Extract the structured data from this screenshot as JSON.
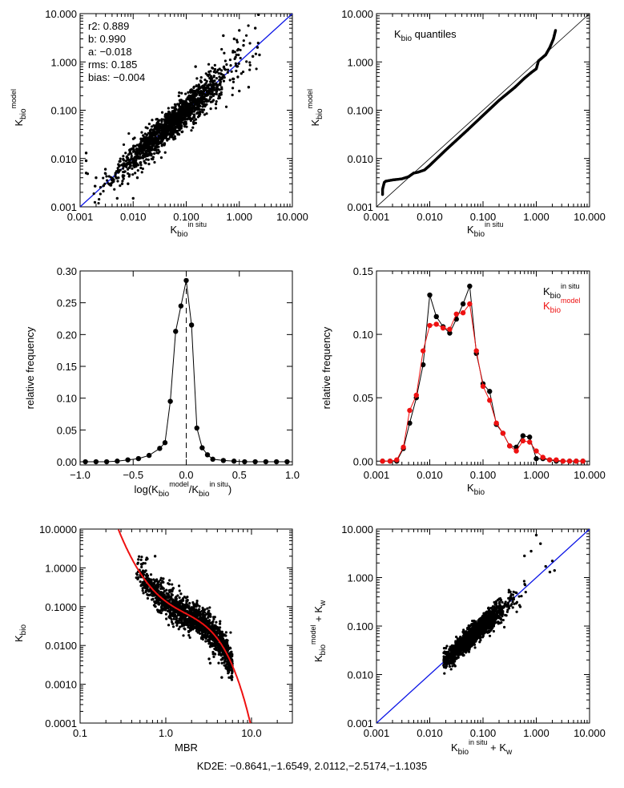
{
  "footer": "KD2E: −0.8641,−1.6549, 2.0112,−2.5174,−1.1035",
  "colors": {
    "black": "#000000",
    "blue": "#0a14e6",
    "red": "#ee1111"
  },
  "chart_data": [
    {
      "id": "p1",
      "type": "scatter",
      "xscale": "log",
      "yscale": "log",
      "xlim": [
        0.001,
        10
      ],
      "ylim": [
        0.001,
        10
      ],
      "xticks": [
        "0.001",
        "0.010",
        "0.100",
        "1.000",
        "10.000"
      ],
      "yticks": [
        "0.001",
        "0.010",
        "0.100",
        "1.000",
        "10.000"
      ],
      "xlabel": {
        "base": "K",
        "sub": "bio",
        "sup": "in situ"
      },
      "ylabel": {
        "base": "K",
        "sub": "bio",
        "sup": "model"
      },
      "stats": [
        "r2: 0.889",
        "b: 0.990",
        "a: −0.018",
        "rms: 0.185",
        "bias: −0.004"
      ],
      "fit_line": {
        "color": "blue",
        "points": [
          [
            0.001,
            0.001
          ],
          [
            10,
            10
          ]
        ]
      },
      "scatter": {
        "n": 1600,
        "center": -1.25,
        "spread": 0.52,
        "noise": 0.16,
        "seed": 11,
        "outliers": [
          [
            0.0013,
            0.013
          ],
          [
            0.0013,
            0.009
          ],
          [
            0.0013,
            0.005
          ],
          [
            0.002,
            0.004
          ],
          [
            0.003,
            0.006
          ],
          [
            0.005,
            0.0015
          ],
          [
            0.0062,
            0.003
          ],
          [
            0.008,
            0.003
          ],
          [
            0.01,
            0.0015
          ],
          [
            0.012,
            0.004
          ],
          [
            0.35,
            0.7
          ],
          [
            0.5,
            3.5
          ],
          [
            0.8,
            3.0
          ],
          [
            1.0,
            0.25
          ],
          [
            1.2,
            2.2
          ],
          [
            1.5,
            0.3
          ],
          [
            1.8,
            1.3
          ],
          [
            2.0,
            5.0
          ],
          [
            2.2,
            2.0
          ],
          [
            2.3,
            9.5
          ],
          [
            2.4,
            1.4
          ],
          [
            1.0,
            4.5
          ],
          [
            0.15,
            0.8
          ]
        ]
      }
    },
    {
      "id": "p2",
      "type": "scatter",
      "xscale": "log",
      "yscale": "log",
      "xlim": [
        0.001,
        10
      ],
      "ylim": [
        0.001,
        10
      ],
      "xticks": [
        "0.001",
        "0.010",
        "0.100",
        "1.000",
        "10.000"
      ],
      "yticks": [
        "0.001",
        "0.010",
        "0.100",
        "1.000",
        "10.000"
      ],
      "xlabel": {
        "base": "K",
        "sub": "bio",
        "sup": "in situ"
      },
      "ylabel": {
        "base": "K",
        "sub": "bio",
        "sup": "model"
      },
      "annotation": {
        "base": "K",
        "sub": "bio",
        "rest": " quantiles"
      },
      "ref_line": {
        "color": "black",
        "points": [
          [
            0.001,
            0.001
          ],
          [
            10,
            10
          ]
        ]
      },
      "quantiles": {
        "x": [
          0.0013,
          0.0013,
          0.0014,
          0.0015,
          0.002,
          0.003,
          0.004,
          0.005,
          0.006,
          0.008,
          0.01,
          0.02,
          0.05,
          0.1,
          0.2,
          0.4,
          0.6,
          0.8,
          1.0,
          1.1,
          1.5,
          1.8,
          2.1,
          2.2,
          2.3
        ],
        "y": [
          0.0018,
          0.0023,
          0.0032,
          0.0034,
          0.0036,
          0.0038,
          0.0042,
          0.005,
          0.0052,
          0.0058,
          0.0072,
          0.015,
          0.038,
          0.078,
          0.16,
          0.3,
          0.46,
          0.6,
          0.72,
          1.05,
          1.4,
          2.0,
          3.0,
          3.7,
          4.5
        ]
      }
    },
    {
      "id": "p3",
      "type": "line",
      "xscale": "linear",
      "yscale": "linear",
      "xlim": [
        -1.0,
        1.0
      ],
      "ylim": [
        -0.005,
        0.3
      ],
      "xticks": [
        "−1.0",
        "−0.5",
        "0.0",
        "0.5",
        "1.0"
      ],
      "xtick_values": [
        -1.0,
        -0.5,
        0.0,
        0.5,
        1.0
      ],
      "yticks": [
        "0.00",
        "0.05",
        "0.10",
        "0.15",
        "0.20",
        "0.25",
        "0.30"
      ],
      "ytick_values": [
        0,
        0.05,
        0.1,
        0.15,
        0.2,
        0.25,
        0.3
      ],
      "ylabel_text": "relative frequency",
      "xlabel_parts": [
        "log(K",
        "bio",
        "model",
        "/K",
        "bio",
        "in situ",
        ")"
      ],
      "dashed_x": 0.0,
      "series": [
        {
          "color": "black",
          "x": [
            -0.95,
            -0.85,
            -0.75,
            -0.65,
            -0.55,
            -0.45,
            -0.35,
            -0.25,
            -0.2,
            -0.15,
            -0.1,
            -0.05,
            0.0,
            0.05,
            0.1,
            0.15,
            0.2,
            0.25,
            0.35,
            0.45,
            0.55,
            0.65,
            0.75,
            0.85,
            0.95
          ],
          "y": [
            0.0,
            0.0,
            0.0,
            0.001,
            0.003,
            0.005,
            0.01,
            0.021,
            0.03,
            0.095,
            0.205,
            0.245,
            0.285,
            0.215,
            0.053,
            0.022,
            0.011,
            0.004,
            0.002,
            0.001,
            0.0,
            0.0,
            0.0,
            0.0,
            0.0
          ]
        }
      ]
    },
    {
      "id": "p4",
      "type": "line",
      "xscale": "log",
      "yscale": "linear",
      "xlim": [
        0.001,
        10
      ],
      "ylim": [
        -0.003,
        0.15
      ],
      "xticks": [
        "0.001",
        "0.010",
        "0.100",
        "1.000",
        "10.000"
      ],
      "yticks": [
        "0.00",
        "0.05",
        "0.10",
        "0.15"
      ],
      "ytick_values": [
        0,
        0.05,
        0.1,
        0.15
      ],
      "ylabel_text": "relative frequency",
      "xlabel": {
        "base": "K",
        "sub": "bio",
        "sup": ""
      },
      "legend": [
        {
          "color": "black",
          "base": "K",
          "sub": "bio",
          "sup": "in situ"
        },
        {
          "color": "red",
          "base": "K",
          "sub": "bio",
          "sup": "model"
        }
      ],
      "series": [
        {
          "color": "black",
          "x": [
            0.0013,
            0.0018,
            0.0024,
            0.0032,
            0.0042,
            0.0056,
            0.0075,
            0.01,
            0.0133,
            0.0178,
            0.0237,
            0.0316,
            0.0422,
            0.0562,
            0.075,
            0.1,
            0.133,
            0.178,
            0.237,
            0.316,
            0.422,
            0.562,
            0.75,
            1.0,
            1.33,
            1.78,
            2.37,
            3.16,
            4.22,
            5.62,
            7.5
          ],
          "y": [
            0.0,
            0.0,
            0.0,
            0.01,
            0.03,
            0.05,
            0.076,
            0.131,
            0.114,
            0.106,
            0.101,
            0.112,
            0.124,
            0.138,
            0.085,
            0.061,
            0.055,
            0.029,
            0.022,
            0.012,
            0.011,
            0.02,
            0.019,
            0.002,
            0.002,
            0.001,
            0.0,
            0.0,
            0.0,
            0.0,
            0.0
          ]
        },
        {
          "color": "red",
          "x": [
            0.0013,
            0.0018,
            0.0024,
            0.0032,
            0.0042,
            0.0056,
            0.0075,
            0.01,
            0.0133,
            0.0178,
            0.0237,
            0.0316,
            0.0422,
            0.0562,
            0.075,
            0.1,
            0.133,
            0.178,
            0.237,
            0.316,
            0.422,
            0.562,
            0.75,
            1.0,
            1.33,
            1.78,
            2.37,
            3.16,
            4.22,
            5.62,
            7.5
          ],
          "y": [
            0.0,
            0.0,
            0.001,
            0.011,
            0.04,
            0.052,
            0.087,
            0.107,
            0.108,
            0.105,
            0.104,
            0.116,
            0.117,
            0.124,
            0.087,
            0.059,
            0.048,
            0.03,
            0.022,
            0.012,
            0.008,
            0.016,
            0.015,
            0.008,
            0.003,
            0.001,
            0.001,
            0.0,
            0.0,
            0.0,
            0.0
          ]
        }
      ]
    },
    {
      "id": "p5",
      "type": "scatter",
      "xscale": "log",
      "yscale": "log",
      "xlim": [
        0.1,
        30
      ],
      "ylim": [
        0.0001,
        10
      ],
      "xticks": [
        "0.1",
        "1.0",
        "10.0"
      ],
      "xtick_values": [
        0.1,
        1.0,
        10.0
      ],
      "yticks": [
        "0.0001",
        "0.0010",
        "0.0100",
        "0.1000",
        "1.0000",
        "10.0000"
      ],
      "xlabel_text": "MBR",
      "ylabel": {
        "base": "K",
        "sub": "bio",
        "sup": ""
      },
      "curve": {
        "color": "red",
        "coefficients": [
          -0.8641,
          -1.6549,
          2.0112,
          -2.5174,
          -1.1035
        ],
        "xrange": [
          0.28,
          9.8
        ]
      },
      "scatter": {
        "n": 1500,
        "xrange": [
          0.45,
          6.0
        ],
        "noise": 0.2,
        "seed": 7,
        "outliers": [
          [
            3.2,
            0.0045
          ],
          [
            3.3,
            0.0035
          ],
          [
            4.5,
            0.0015
          ],
          [
            5.2,
            0.0025
          ],
          [
            0.6,
            1.8
          ],
          [
            0.75,
            2.0
          ],
          [
            2.5,
            0.05
          ],
          [
            2.0,
            0.03
          ]
        ]
      }
    },
    {
      "id": "p6",
      "type": "scatter",
      "xscale": "log",
      "yscale": "log",
      "xlim": [
        0.001,
        10
      ],
      "ylim": [
        0.001,
        10
      ],
      "xticks": [
        "0.001",
        "0.010",
        "0.100",
        "1.000",
        "10.000"
      ],
      "yticks": [
        "0.001",
        "0.010",
        "0.100",
        "1.000",
        "10.000"
      ],
      "xlabel_parts": [
        "K",
        "bio",
        "in situ",
        "+ K",
        "w"
      ],
      "ylabel_parts": [
        "K",
        "bio",
        "model",
        "+ K",
        "w"
      ],
      "fit_line": {
        "color": "blue",
        "points": [
          [
            0.001,
            0.001
          ],
          [
            10,
            10
          ]
        ]
      },
      "scatter": {
        "n": 1600,
        "center": -1.15,
        "spread": 0.3,
        "noise": 0.1,
        "xmin": 0.018,
        "seed": 23,
        "outliers": [
          [
            1.0,
            7.5
          ],
          [
            1.2,
            5.0
          ],
          [
            0.8,
            3.5
          ],
          [
            1.5,
            1.7
          ],
          [
            2.0,
            2.2
          ],
          [
            0.6,
            2.8
          ],
          [
            1.8,
            1.3
          ],
          [
            2.2,
            1.4
          ],
          [
            0.5,
            0.25
          ],
          [
            0.02,
            0.035
          ],
          [
            0.03,
            0.015
          ]
        ]
      }
    }
  ]
}
